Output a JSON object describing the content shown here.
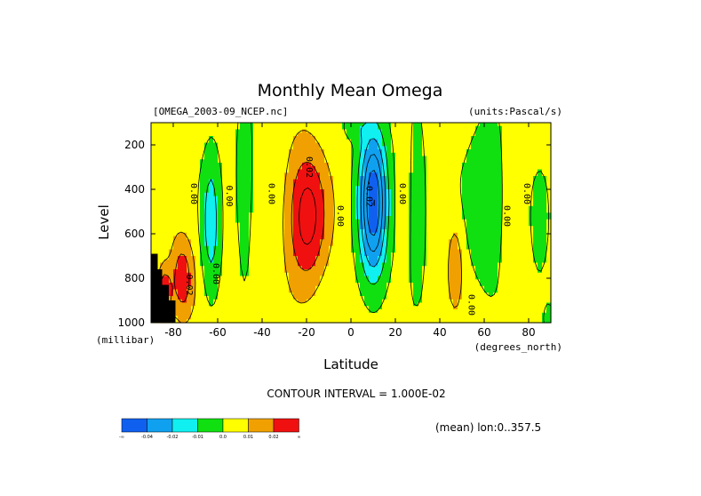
{
  "chart_data": {
    "type": "heatmap",
    "title": "Monthly Mean Omega",
    "subtitle_left": "[OMEGA_2003-09_NCEP.nc]",
    "subtitle_right": "(units:Pascal/s)",
    "xlabel": "Latitude",
    "ylabel": "Level",
    "x_units": "(degrees_north)",
    "y_units": "(millibar)",
    "xlim": [
      -90,
      90
    ],
    "ylim": [
      1000,
      100
    ],
    "x_ticks": [
      -80,
      -60,
      -40,
      -20,
      0,
      20,
      40,
      60,
      80
    ],
    "x_tick_labels": [
      "-80",
      "-60",
      "-40",
      "-20",
      "0",
      "20",
      "40",
      "60",
      "80"
    ],
    "y_ticks": [
      200,
      400,
      600,
      800,
      1000
    ],
    "y_tick_labels": [
      "200",
      "400",
      "600",
      "800",
      "1000"
    ],
    "contour_interval_text": "CONTOUR INTERVAL = 1.000E-02",
    "mean_note": "(mean) lon:0..357.5",
    "legend": {
      "colors": [
        "#1060f0",
        "#10a0f0",
        "#10f0f0",
        "#10e010",
        "#ffff00",
        "#f0a000",
        "#f01010"
      ],
      "labels": [
        "-∞",
        "-0.04",
        "-0.02",
        "-0.01",
        "0.0",
        "0.01",
        "0.02",
        "∞"
      ]
    },
    "contour_labels": [
      {
        "text": "0.00",
        "lat": -72,
        "lev": 420
      },
      {
        "text": "0.00",
        "lat": -56,
        "lev": 430
      },
      {
        "text": "0.00",
        "lat": -37,
        "lev": 420
      },
      {
        "text": "0.00",
        "lat": -6,
        "lev": 520
      },
      {
        "text": "0.02",
        "lat": -20,
        "lev": 300
      },
      {
        "text": "-0.02",
        "lat": 7,
        "lev": 420
      },
      {
        "text": "0.00",
        "lat": 22,
        "lev": 420
      },
      {
        "text": "0.00",
        "lat": 69,
        "lev": 520
      },
      {
        "text": "0.00",
        "lat": 78,
        "lev": 420
      },
      {
        "text": "0.00",
        "lat": 53,
        "lev": 920
      },
      {
        "text": "0.00",
        "lat": -62,
        "lev": 780
      },
      {
        "text": "0.02",
        "lat": -74,
        "lev": 830
      }
    ]
  }
}
